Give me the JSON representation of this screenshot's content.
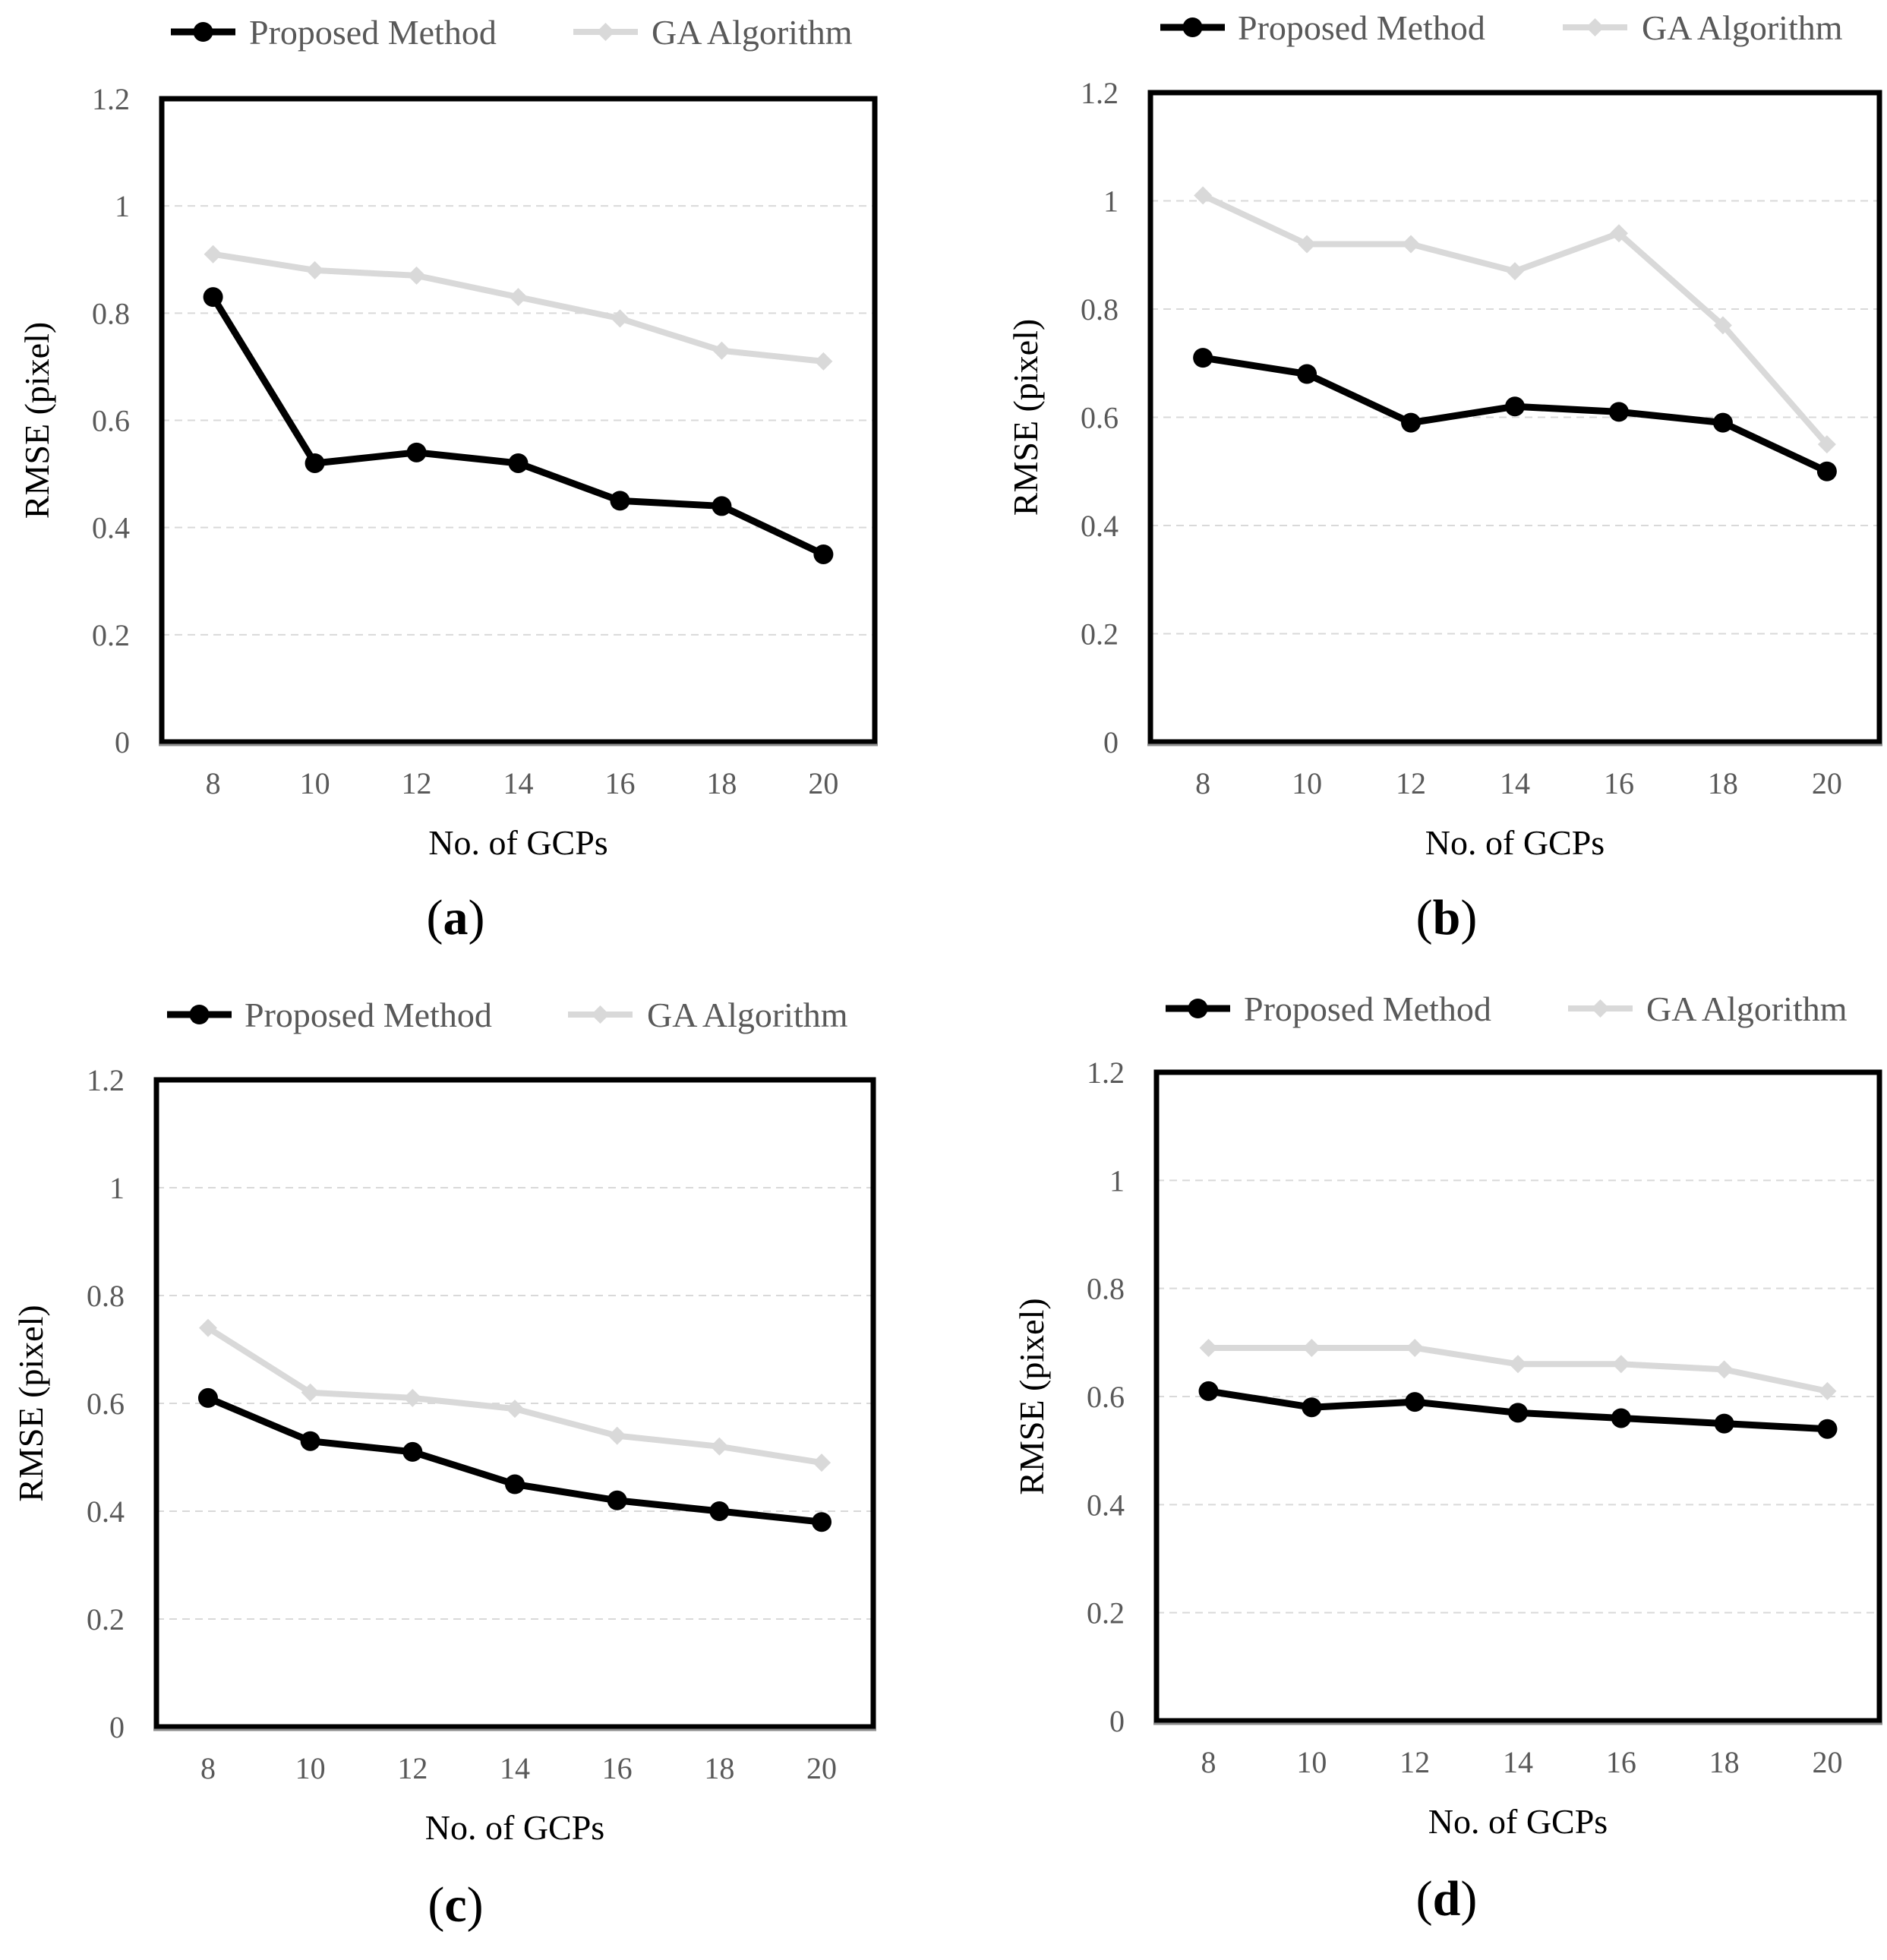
{
  "chart_data": [
    {
      "type": "line",
      "panel_label": "a",
      "x": [
        8,
        10,
        12,
        14,
        16,
        18,
        20
      ],
      "categories": [
        "8",
        "10",
        "12",
        "14",
        "16",
        "18",
        "20"
      ],
      "series": [
        {
          "name": "Proposed Method",
          "values": [
            0.83,
            0.52,
            0.54,
            0.52,
            0.45,
            0.44,
            0.35
          ],
          "color": "#000000",
          "marker": "circle"
        },
        {
          "name": "GA Algorithm",
          "values": [
            0.91,
            0.88,
            0.87,
            0.83,
            0.79,
            0.73,
            0.71
          ],
          "color": "#d9d9d9",
          "marker": "diamond"
        }
      ],
      "xlabel": "No. of GCPs",
      "ylabel": "RMSE (pixel)",
      "ylim": [
        0,
        1.2
      ],
      "yticks": [
        "0",
        "0.2",
        "0.4",
        "0.6",
        "0.8",
        "1",
        "1.2"
      ],
      "grid": true,
      "legend": "top"
    },
    {
      "type": "line",
      "panel_label": "b",
      "x": [
        8,
        10,
        12,
        14,
        16,
        18,
        20
      ],
      "categories": [
        "8",
        "10",
        "12",
        "14",
        "16",
        "18",
        "20"
      ],
      "series": [
        {
          "name": "Proposed Method",
          "values": [
            0.71,
            0.68,
            0.59,
            0.62,
            0.61,
            0.59,
            0.5
          ],
          "color": "#000000",
          "marker": "circle"
        },
        {
          "name": "GA Algorithm",
          "values": [
            1.01,
            0.92,
            0.92,
            0.87,
            0.94,
            0.77,
            0.55
          ],
          "color": "#d9d9d9",
          "marker": "diamond"
        }
      ],
      "xlabel": "No. of GCPs",
      "ylabel": "RMSE (pixel)",
      "ylim": [
        0,
        1.2
      ],
      "yticks": [
        "0",
        "0.2",
        "0.4",
        "0.6",
        "0.8",
        "1",
        "1.2"
      ],
      "grid": true,
      "legend": "top"
    },
    {
      "type": "line",
      "panel_label": "c",
      "x": [
        8,
        10,
        12,
        14,
        16,
        18,
        20
      ],
      "categories": [
        "8",
        "10",
        "12",
        "14",
        "16",
        "18",
        "20"
      ],
      "series": [
        {
          "name": "Proposed Method",
          "values": [
            0.61,
            0.53,
            0.51,
            0.45,
            0.42,
            0.4,
            0.38
          ],
          "color": "#000000",
          "marker": "circle"
        },
        {
          "name": "GA Algorithm",
          "values": [
            0.74,
            0.62,
            0.61,
            0.59,
            0.54,
            0.52,
            0.49
          ],
          "color": "#d9d9d9",
          "marker": "diamond"
        }
      ],
      "xlabel": "No. of GCPs",
      "ylabel": "RMSE (pixel)",
      "ylim": [
        0,
        1.2
      ],
      "yticks": [
        "0",
        "0.2",
        "0.4",
        "0.6",
        "0.8",
        "1",
        "1.2"
      ],
      "grid": true,
      "legend": "top"
    },
    {
      "type": "line",
      "panel_label": "d",
      "x": [
        8,
        10,
        12,
        14,
        16,
        18,
        20
      ],
      "categories": [
        "8",
        "10",
        "12",
        "14",
        "16",
        "18",
        "20"
      ],
      "series": [
        {
          "name": "Proposed Method",
          "values": [
            0.61,
            0.58,
            0.59,
            0.57,
            0.56,
            0.55,
            0.54
          ],
          "color": "#000000",
          "marker": "circle"
        },
        {
          "name": "GA Algorithm",
          "values": [
            0.69,
            0.69,
            0.69,
            0.66,
            0.66,
            0.65,
            0.61
          ],
          "color": "#d9d9d9",
          "marker": "diamond"
        }
      ],
      "xlabel": "No. of GCPs",
      "ylabel": "RMSE (pixel)",
      "ylim": [
        0,
        1.2
      ],
      "yticks": [
        "0",
        "0.2",
        "0.4",
        "0.6",
        "0.8",
        "1",
        "1.2"
      ],
      "grid": true,
      "legend": "top"
    }
  ]
}
